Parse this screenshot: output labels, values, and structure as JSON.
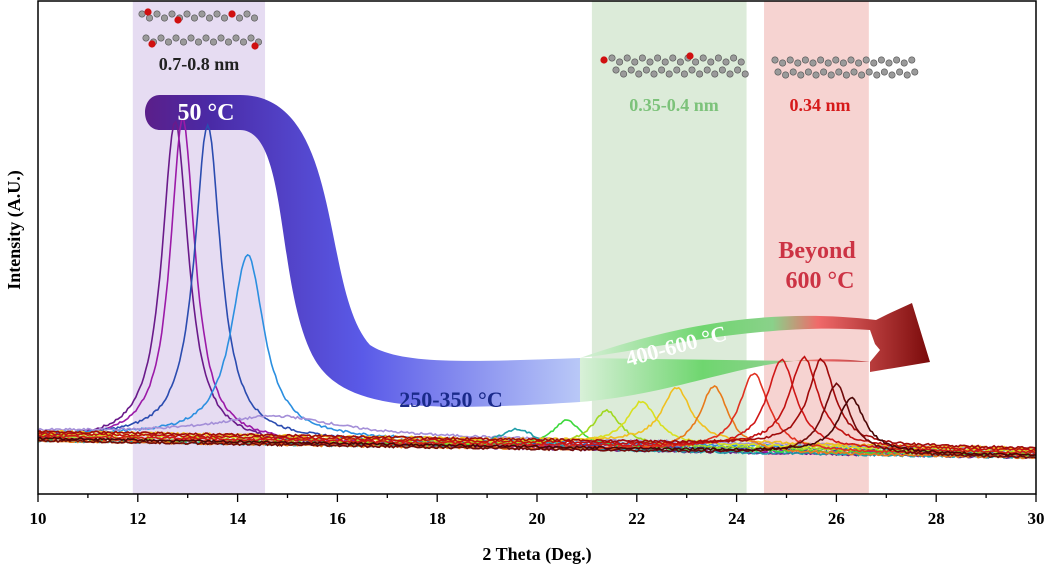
{
  "chart_data": {
    "type": "line",
    "title": "",
    "xlabel": "2 Theta (Deg.)",
    "ylabel": "Intensity (A.U.)",
    "xlim": [
      10,
      30
    ],
    "ylim": [
      0,
      1
    ],
    "xticks": [
      10,
      12,
      14,
      16,
      18,
      20,
      22,
      24,
      26,
      28,
      30
    ],
    "grid": false,
    "legend": "none",
    "regions": [
      {
        "label": "0.7-0.8 nm",
        "x": [
          11.9,
          14.55
        ],
        "color": "#e6dcf2",
        "label_color": "#222222"
      },
      {
        "label": "0.35-0.4 nm",
        "x": [
          21.1,
          24.2
        ],
        "color": "#dcebd9",
        "label_color": "#7cc27a"
      },
      {
        "label": "0.34 nm",
        "x": [
          24.55,
          26.65
        ],
        "color": "#f6d3d1",
        "label_color": "#d61a1a"
      }
    ],
    "arrow_labels": [
      {
        "text": "50 °C",
        "color": "#ffffff"
      },
      {
        "text": "250-350 °C",
        "color": "#1a2a8a"
      },
      {
        "text": "400-600 °C",
        "color": "#ffffff"
      },
      {
        "text": "Beyond",
        "color": "#cc3344"
      },
      {
        "text": "600 °C",
        "color": "#cc3344"
      }
    ],
    "series": [
      {
        "peak": 12.75,
        "height": 0.83,
        "width": 0.32,
        "color": "#6a1a8a"
      },
      {
        "peak": 12.9,
        "height": 0.83,
        "width": 0.3,
        "color": "#9b1aa8"
      },
      {
        "peak": 13.4,
        "height": 0.81,
        "width": 0.32,
        "color": "#2b4cb0"
      },
      {
        "peak": 14.2,
        "height": 0.47,
        "width": 0.4,
        "color": "#2b8fe0"
      },
      {
        "peak": 14.8,
        "height": 0.05,
        "width": 1.5,
        "color": "#a48fd8"
      },
      {
        "peak": 19.6,
        "height": 0.05,
        "width": 0.5,
        "color": "#1f9ea8"
      },
      {
        "peak": 20.6,
        "height": 0.07,
        "width": 0.35,
        "color": "#3dd83d"
      },
      {
        "peak": 21.4,
        "height": 0.09,
        "width": 0.35,
        "color": "#a0d820"
      },
      {
        "peak": 22.1,
        "height": 0.11,
        "width": 0.35,
        "color": "#d8e020"
      },
      {
        "peak": 22.8,
        "height": 0.14,
        "width": 0.35,
        "color": "#f0c020"
      },
      {
        "peak": 23.55,
        "height": 0.17,
        "width": 0.35,
        "color": "#e87a1a"
      },
      {
        "peak": 24.35,
        "height": 0.2,
        "width": 0.35,
        "color": "#e03020"
      },
      {
        "peak": 24.9,
        "height": 0.23,
        "width": 0.35,
        "color": "#d01818"
      },
      {
        "peak": 25.35,
        "height": 0.23,
        "width": 0.35,
        "color": "#c01010"
      },
      {
        "peak": 25.7,
        "height": 0.22,
        "width": 0.32,
        "color": "#a00a0a"
      },
      {
        "peak": 26.0,
        "height": 0.18,
        "width": 0.32,
        "color": "#700a0a"
      },
      {
        "peak": 26.3,
        "height": 0.14,
        "width": 0.32,
        "color": "#4a0606"
      }
    ]
  }
}
